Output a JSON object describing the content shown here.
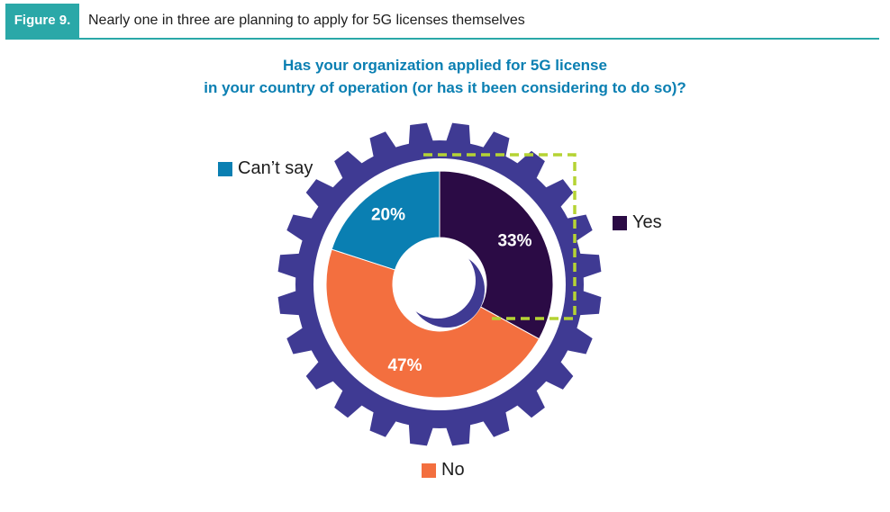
{
  "figure": {
    "tag": "Figure 9.",
    "caption": "Nearly one in three are planning to apply for 5G licenses themselves"
  },
  "colors": {
    "accent": "#2aa8a8",
    "gear": "#3f3a93",
    "yes": "#2b0b45",
    "no": "#f36f3f",
    "cant_say": "#0a7fb2",
    "highlight": "#b5d334"
  },
  "chart_data": {
    "type": "pie",
    "title": "Has your organization applied for 5G license in your country of operation (or has it been considering to do so)?",
    "title_lines": [
      "Has your organization applied for 5G license",
      "in your country of operation (or has it been considering to do so)?"
    ],
    "slices": [
      {
        "label": "Yes",
        "value": 33,
        "value_label": "33%",
        "color": "#2b0b45"
      },
      {
        "label": "No",
        "value": 47,
        "value_label": "47%",
        "color": "#f36f3f"
      },
      {
        "label": "Can’t say",
        "value": 20,
        "value_label": "20%",
        "color": "#0a7fb2"
      }
    ],
    "legend": [
      {
        "label": "Can’t say",
        "color": "#0a7fb2"
      },
      {
        "label": "Yes",
        "color": "#2b0b45"
      },
      {
        "label": "No",
        "color": "#f36f3f"
      }
    ]
  }
}
